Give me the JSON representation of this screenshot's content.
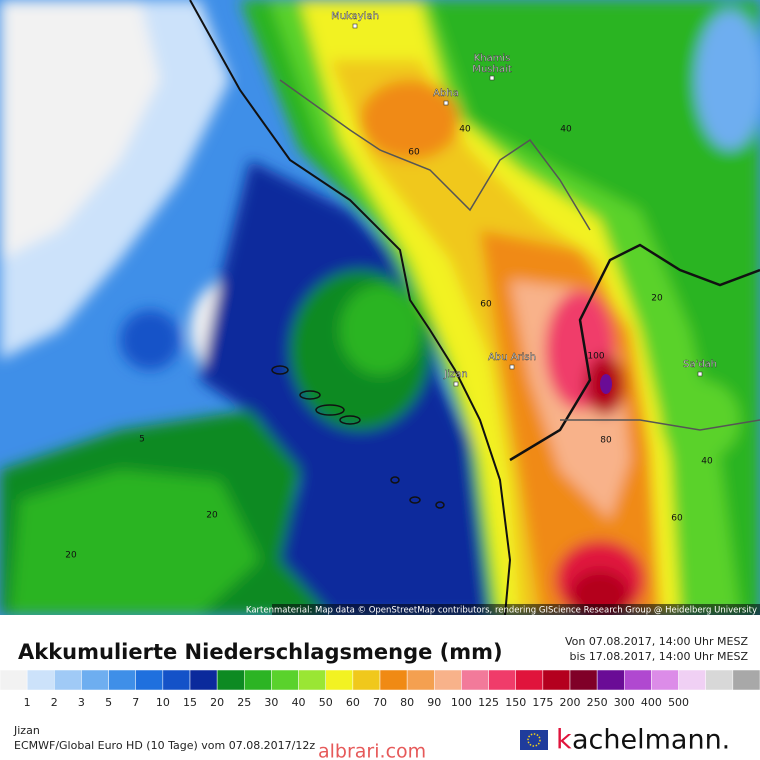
{
  "map": {
    "cities": [
      "Mukaylah",
      "Khamis\nMushait",
      "Abha",
      "Abu Arish",
      "Jizan",
      "Sa'dah"
    ],
    "contours": [
      "40",
      "40",
      "60",
      "60",
      "100",
      "80",
      "20",
      "40",
      "60",
      "5",
      "20",
      "20"
    ],
    "attribution": "Kartenmaterial: Map data © OpenStreetMap contributors, rendering GIScience Research Group @ Heidelberg University"
  },
  "header": {
    "title": "Akkumulierte Niederschlagsmenge (mm)",
    "from": "Von 07.08.2017, 14:00 Uhr MESZ",
    "to": "bis 17.08.2017, 14:00 Uhr MESZ"
  },
  "legend": {
    "colors": [
      "#f2f2f2",
      "#cce2fa",
      "#a0caf6",
      "#6eaef0",
      "#3f8fe8",
      "#1f70de",
      "#1452c8",
      "#0b2a9c",
      "#0d8a22",
      "#2cb424",
      "#5ad22c",
      "#9ae634",
      "#f2f222",
      "#f0c81c",
      "#f08a14",
      "#f4a050",
      "#f8b28a",
      "#f27a9a",
      "#f03c6a",
      "#e0143c",
      "#b4001e",
      "#800028",
      "#6a0c96",
      "#b048d0",
      "#dc8ce8",
      "#f0d0f4",
      "#d8d8d8",
      "#a8a8a8"
    ],
    "labels": [
      1,
      2,
      3,
      5,
      7,
      10,
      15,
      20,
      25,
      30,
      40,
      50,
      60,
      70,
      80,
      90,
      100,
      125,
      150,
      175,
      200,
      250,
      300,
      400,
      500
    ]
  },
  "footer": {
    "location": "Jizan",
    "model": "ECMWF/Global Euro HD (10 Tage) vom 07.08.2017/12z",
    "watermark": "albrari.com",
    "logo_k": "k",
    "logo_rest": "achelmann."
  }
}
